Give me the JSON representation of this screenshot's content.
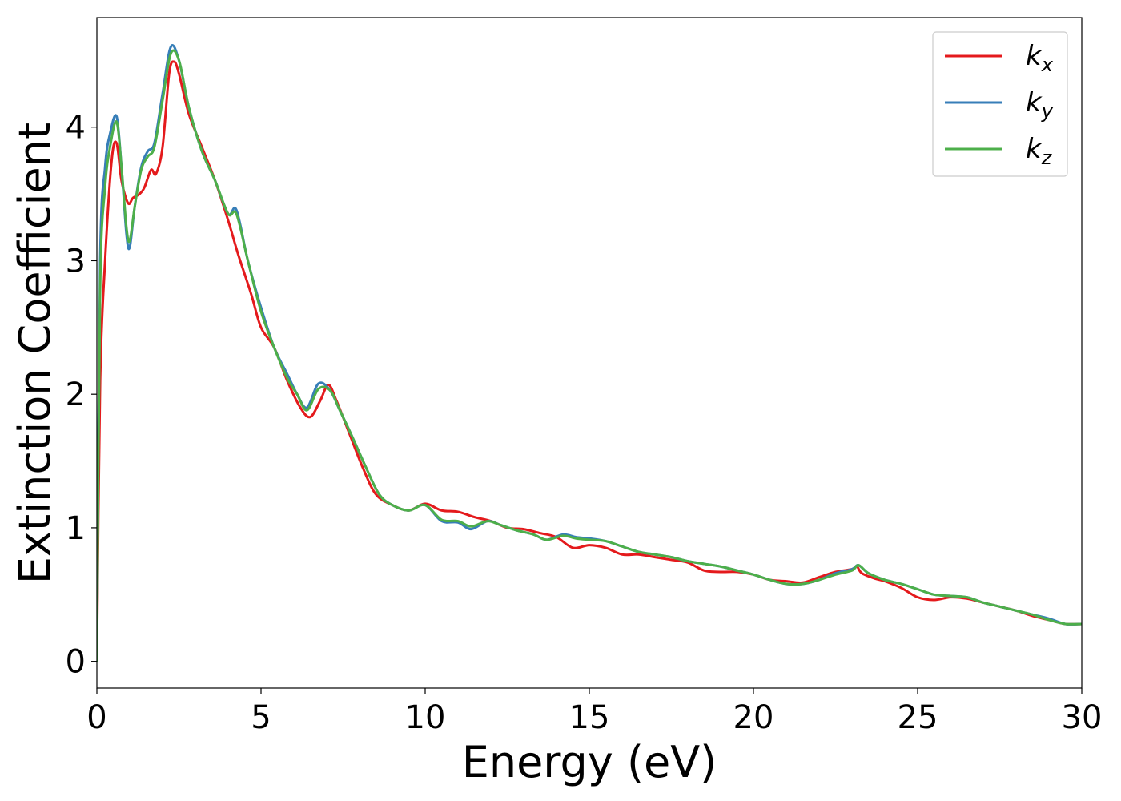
{
  "chart_data": {
    "type": "line",
    "title": "",
    "xlabel": "Energy (eV)",
    "ylabel": "Extinction Coefficient",
    "xlim": [
      0,
      30
    ],
    "ylim": [
      -0.2,
      4.82
    ],
    "xticks": [
      0,
      5,
      10,
      15,
      20,
      25,
      30
    ],
    "xtick_labels": [
      "0",
      "5",
      "10",
      "15",
      "20",
      "25",
      "30"
    ],
    "yticks": [
      0,
      1,
      2,
      3,
      4
    ],
    "ytick_labels": [
      "0",
      "1",
      "2",
      "3",
      "4"
    ],
    "grid": false,
    "legend_position": "top-right",
    "series": [
      {
        "name": "k_x",
        "label_main": "k",
        "label_sub": "x",
        "color": "#e41a1c",
        "points": [
          [
            0,
            0
          ],
          [
            0.1,
            2.1
          ],
          [
            0.25,
            3.0
          ],
          [
            0.45,
            3.75
          ],
          [
            0.6,
            3.88
          ],
          [
            0.75,
            3.6
          ],
          [
            0.95,
            3.43
          ],
          [
            1.1,
            3.47
          ],
          [
            1.3,
            3.5
          ],
          [
            1.45,
            3.55
          ],
          [
            1.65,
            3.68
          ],
          [
            1.8,
            3.65
          ],
          [
            2.0,
            3.85
          ],
          [
            2.2,
            4.4
          ],
          [
            2.35,
            4.49
          ],
          [
            2.5,
            4.4
          ],
          [
            2.8,
            4.1
          ],
          [
            3.2,
            3.85
          ],
          [
            3.6,
            3.6
          ],
          [
            4.0,
            3.3
          ],
          [
            4.3,
            3.05
          ],
          [
            4.7,
            2.75
          ],
          [
            5.0,
            2.5
          ],
          [
            5.4,
            2.35
          ],
          [
            5.8,
            2.1
          ],
          [
            6.2,
            1.9
          ],
          [
            6.5,
            1.83
          ],
          [
            6.8,
            1.95
          ],
          [
            7.05,
            2.07
          ],
          [
            7.3,
            1.95
          ],
          [
            7.7,
            1.7
          ],
          [
            8.1,
            1.45
          ],
          [
            8.5,
            1.25
          ],
          [
            9.0,
            1.17
          ],
          [
            9.5,
            1.13
          ],
          [
            10.0,
            1.18
          ],
          [
            10.5,
            1.13
          ],
          [
            11.0,
            1.12
          ],
          [
            11.5,
            1.08
          ],
          [
            12.0,
            1.05
          ],
          [
            12.5,
            1.0
          ],
          [
            13.0,
            0.99
          ],
          [
            13.5,
            0.96
          ],
          [
            14.0,
            0.93
          ],
          [
            14.5,
            0.85
          ],
          [
            15.0,
            0.87
          ],
          [
            15.5,
            0.85
          ],
          [
            16.0,
            0.8
          ],
          [
            16.5,
            0.8
          ],
          [
            17.0,
            0.78
          ],
          [
            17.5,
            0.76
          ],
          [
            18.0,
            0.74
          ],
          [
            18.5,
            0.68
          ],
          [
            19.0,
            0.67
          ],
          [
            19.5,
            0.67
          ],
          [
            20.0,
            0.65
          ],
          [
            20.5,
            0.61
          ],
          [
            21.0,
            0.6
          ],
          [
            21.5,
            0.59
          ],
          [
            22.0,
            0.63
          ],
          [
            22.5,
            0.67
          ],
          [
            23.0,
            0.69
          ],
          [
            23.15,
            0.71
          ],
          [
            23.3,
            0.66
          ],
          [
            23.7,
            0.62
          ],
          [
            24.0,
            0.6
          ],
          [
            24.5,
            0.55
          ],
          [
            25.0,
            0.48
          ],
          [
            25.5,
            0.46
          ],
          [
            26.0,
            0.48
          ],
          [
            26.5,
            0.47
          ],
          [
            27.0,
            0.44
          ],
          [
            27.5,
            0.41
          ],
          [
            28.0,
            0.38
          ],
          [
            28.5,
            0.34
          ],
          [
            29.0,
            0.31
          ],
          [
            29.5,
            0.28
          ],
          [
            30.0,
            0.28
          ]
        ]
      },
      {
        "name": "k_y",
        "label_main": "k",
        "label_sub": "y",
        "color": "#377eb8",
        "points": [
          [
            0,
            0
          ],
          [
            0.1,
            3.0
          ],
          [
            0.25,
            3.7
          ],
          [
            0.4,
            3.95
          ],
          [
            0.6,
            4.08
          ],
          [
            0.75,
            3.7
          ],
          [
            0.9,
            3.2
          ],
          [
            1.0,
            3.1
          ],
          [
            1.15,
            3.4
          ],
          [
            1.35,
            3.7
          ],
          [
            1.55,
            3.82
          ],
          [
            1.75,
            3.88
          ],
          [
            2.0,
            4.25
          ],
          [
            2.25,
            4.6
          ],
          [
            2.5,
            4.5
          ],
          [
            2.8,
            4.15
          ],
          [
            3.2,
            3.82
          ],
          [
            3.6,
            3.6
          ],
          [
            4.0,
            3.35
          ],
          [
            4.25,
            3.38
          ],
          [
            4.6,
            3.0
          ],
          [
            5.0,
            2.65
          ],
          [
            5.4,
            2.35
          ],
          [
            5.8,
            2.15
          ],
          [
            6.1,
            2.0
          ],
          [
            6.4,
            1.9
          ],
          [
            6.75,
            2.08
          ],
          [
            7.1,
            2.03
          ],
          [
            7.4,
            1.88
          ],
          [
            7.8,
            1.67
          ],
          [
            8.2,
            1.45
          ],
          [
            8.6,
            1.25
          ],
          [
            9.0,
            1.17
          ],
          [
            9.5,
            1.13
          ],
          [
            10.0,
            1.17
          ],
          [
            10.5,
            1.05
          ],
          [
            11.0,
            1.04
          ],
          [
            11.4,
            0.99
          ],
          [
            11.9,
            1.05
          ],
          [
            12.3,
            1.02
          ],
          [
            12.8,
            0.98
          ],
          [
            13.3,
            0.95
          ],
          [
            13.7,
            0.91
          ],
          [
            14.2,
            0.95
          ],
          [
            14.6,
            0.93
          ],
          [
            15.0,
            0.92
          ],
          [
            15.5,
            0.9
          ],
          [
            16.0,
            0.86
          ],
          [
            16.5,
            0.82
          ],
          [
            17.0,
            0.8
          ],
          [
            17.5,
            0.78
          ],
          [
            18.0,
            0.75
          ],
          [
            18.5,
            0.73
          ],
          [
            19.0,
            0.71
          ],
          [
            19.5,
            0.68
          ],
          [
            20.0,
            0.65
          ],
          [
            20.5,
            0.61
          ],
          [
            21.0,
            0.58
          ],
          [
            21.5,
            0.58
          ],
          [
            22.0,
            0.61
          ],
          [
            22.5,
            0.66
          ],
          [
            23.0,
            0.69
          ],
          [
            23.2,
            0.72
          ],
          [
            23.5,
            0.66
          ],
          [
            24.0,
            0.61
          ],
          [
            24.5,
            0.58
          ],
          [
            25.0,
            0.54
          ],
          [
            25.5,
            0.5
          ],
          [
            26.0,
            0.49
          ],
          [
            26.5,
            0.48
          ],
          [
            27.0,
            0.44
          ],
          [
            27.5,
            0.41
          ],
          [
            28.0,
            0.38
          ],
          [
            28.5,
            0.35
          ],
          [
            29.0,
            0.32
          ],
          [
            29.5,
            0.28
          ],
          [
            30.0,
            0.28
          ]
        ]
      },
      {
        "name": "k_z",
        "label_main": "k",
        "label_sub": "z",
        "color": "#4daf4a",
        "points": [
          [
            0,
            0
          ],
          [
            0.1,
            2.8
          ],
          [
            0.25,
            3.55
          ],
          [
            0.4,
            3.85
          ],
          [
            0.6,
            4.04
          ],
          [
            0.75,
            3.7
          ],
          [
            0.9,
            3.25
          ],
          [
            1.0,
            3.15
          ],
          [
            1.15,
            3.4
          ],
          [
            1.35,
            3.68
          ],
          [
            1.55,
            3.78
          ],
          [
            1.75,
            3.85
          ],
          [
            2.0,
            4.2
          ],
          [
            2.25,
            4.55
          ],
          [
            2.5,
            4.5
          ],
          [
            2.8,
            4.15
          ],
          [
            3.2,
            3.82
          ],
          [
            3.6,
            3.6
          ],
          [
            4.0,
            3.35
          ],
          [
            4.25,
            3.35
          ],
          [
            4.6,
            3.0
          ],
          [
            5.0,
            2.62
          ],
          [
            5.4,
            2.35
          ],
          [
            5.8,
            2.12
          ],
          [
            6.1,
            2.0
          ],
          [
            6.4,
            1.88
          ],
          [
            6.75,
            2.04
          ],
          [
            7.1,
            2.03
          ],
          [
            7.4,
            1.88
          ],
          [
            7.8,
            1.67
          ],
          [
            8.2,
            1.45
          ],
          [
            8.6,
            1.25
          ],
          [
            9.0,
            1.17
          ],
          [
            9.5,
            1.13
          ],
          [
            10.0,
            1.17
          ],
          [
            10.5,
            1.06
          ],
          [
            11.0,
            1.05
          ],
          [
            11.4,
            1.01
          ],
          [
            11.9,
            1.05
          ],
          [
            12.3,
            1.02
          ],
          [
            12.8,
            0.98
          ],
          [
            13.3,
            0.95
          ],
          [
            13.7,
            0.91
          ],
          [
            14.2,
            0.94
          ],
          [
            14.6,
            0.92
          ],
          [
            15.0,
            0.91
          ],
          [
            15.5,
            0.9
          ],
          [
            16.0,
            0.86
          ],
          [
            16.5,
            0.82
          ],
          [
            17.0,
            0.8
          ],
          [
            17.5,
            0.78
          ],
          [
            18.0,
            0.75
          ],
          [
            18.5,
            0.73
          ],
          [
            19.0,
            0.71
          ],
          [
            19.5,
            0.68
          ],
          [
            20.0,
            0.65
          ],
          [
            20.5,
            0.61
          ],
          [
            21.0,
            0.58
          ],
          [
            21.5,
            0.58
          ],
          [
            22.0,
            0.61
          ],
          [
            22.5,
            0.65
          ],
          [
            23.0,
            0.68
          ],
          [
            23.2,
            0.72
          ],
          [
            23.5,
            0.66
          ],
          [
            24.0,
            0.61
          ],
          [
            24.5,
            0.58
          ],
          [
            25.0,
            0.54
          ],
          [
            25.5,
            0.5
          ],
          [
            26.0,
            0.49
          ],
          [
            26.5,
            0.48
          ],
          [
            27.0,
            0.44
          ],
          [
            27.5,
            0.41
          ],
          [
            28.0,
            0.38
          ],
          [
            28.5,
            0.35
          ],
          [
            29.0,
            0.31
          ],
          [
            29.5,
            0.28
          ],
          [
            30.0,
            0.28
          ]
        ]
      }
    ]
  }
}
